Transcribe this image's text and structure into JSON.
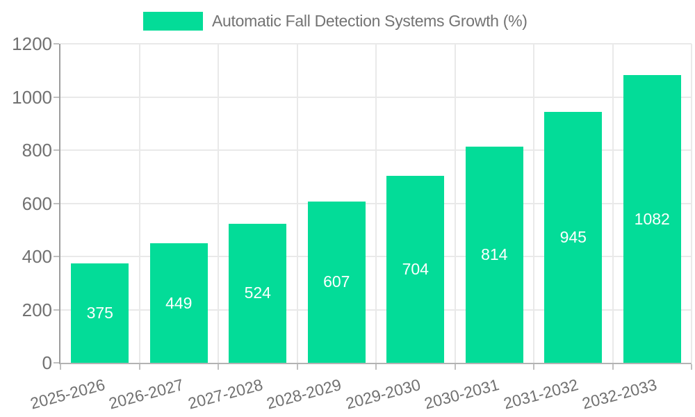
{
  "chart_data": {
    "type": "bar",
    "title": "Automatic Fall Detection Systems Growth (%)",
    "categories": [
      "2025-2026",
      "2026-2027",
      "2027-2028",
      "2028-2029",
      "2029-2030",
      "2030-2031",
      "2031-2032",
      "2032-2033"
    ],
    "values": [
      375,
      449,
      524,
      607,
      704,
      814,
      945,
      1082
    ],
    "value_labels": [
      "375",
      "449",
      "524",
      "607",
      "704",
      "814",
      "945",
      "1082"
    ],
    "xlabel": "",
    "ylabel": "",
    "ylim": [
      0,
      1200
    ],
    "yticks": [
      0,
      200,
      400,
      600,
      800,
      1000,
      1200
    ],
    "grid": "on",
    "legend_position": "top",
    "colors": {
      "bar": "#03dc98",
      "grid": "#e9e9e9",
      "axis": "#a6a6a6",
      "tick_text": "#717171",
      "bar_value_text": "#ffffff"
    }
  }
}
